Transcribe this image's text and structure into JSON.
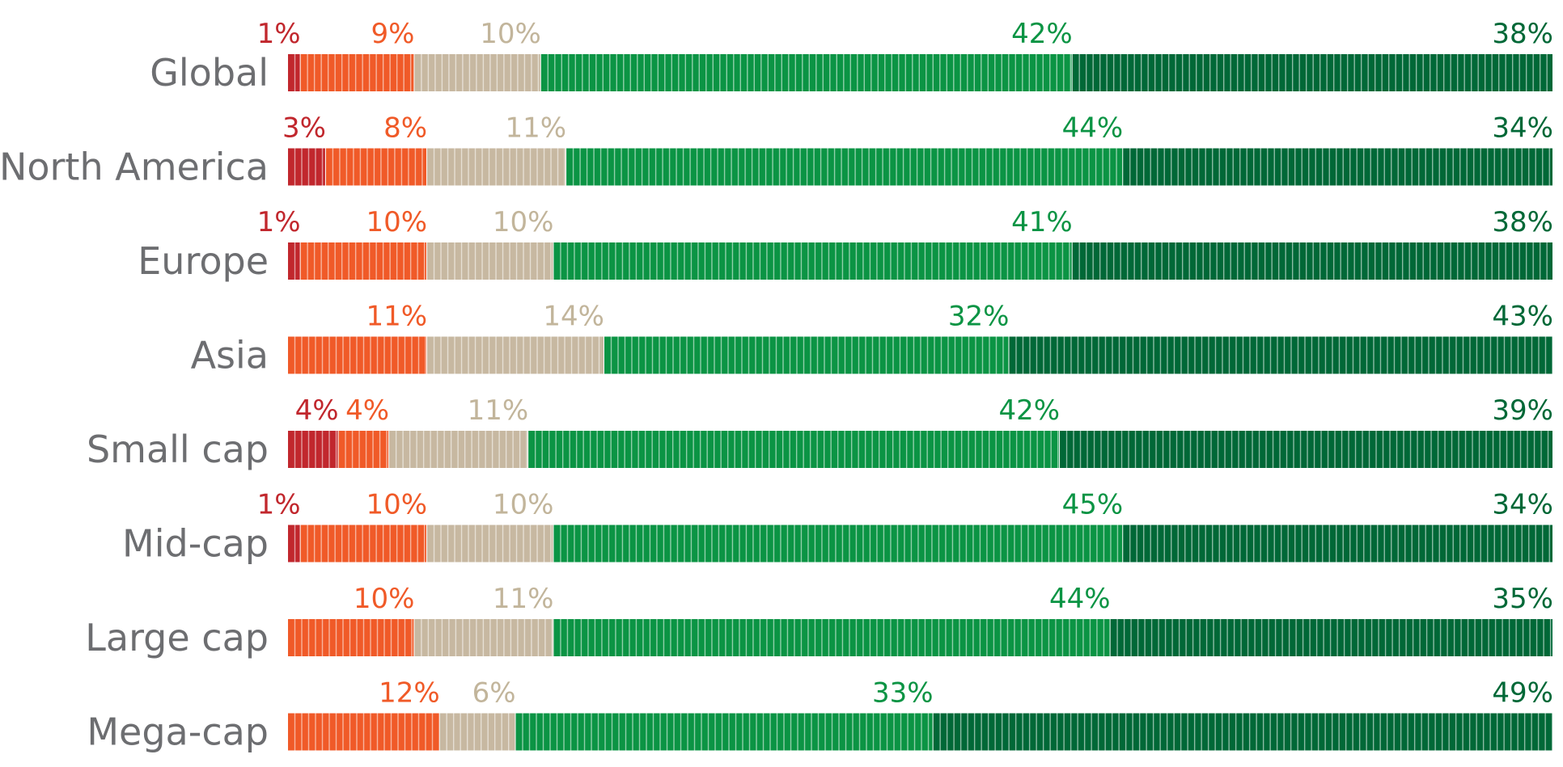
{
  "chart_data": {
    "type": "bar",
    "orientation": "horizontal",
    "stacked": true,
    "title": "",
    "xlabel": "",
    "ylabel": "",
    "xlim": [
      0,
      100
    ],
    "grid": false,
    "legend": "none",
    "unit": "%",
    "categories": [
      "Global",
      "North America",
      "Europe",
      "Asia",
      "Small cap",
      "Mid-cap",
      "Large cap",
      "Mega-cap"
    ],
    "series": [
      {
        "color": "#c1272d",
        "label_color": "#c1272d",
        "values": [
          1,
          3,
          1,
          0,
          4,
          1,
          0,
          0
        ]
      },
      {
        "color": "#f05a28",
        "label_color": "#f05a28",
        "values": [
          9,
          8,
          10,
          11,
          4,
          10,
          10,
          12
        ]
      },
      {
        "color": "#c7b8a1",
        "label_color": "#c2b59b",
        "values": [
          10,
          11,
          10,
          14,
          11,
          10,
          11,
          6
        ]
      },
      {
        "color": "#0b9444",
        "label_color": "#0b9444",
        "values": [
          42,
          44,
          41,
          32,
          42,
          45,
          44,
          33
        ]
      },
      {
        "color": "#006837",
        "label_color": "#006837",
        "values": [
          38,
          34,
          38,
          43,
          39,
          34,
          35,
          49
        ]
      }
    ]
  }
}
